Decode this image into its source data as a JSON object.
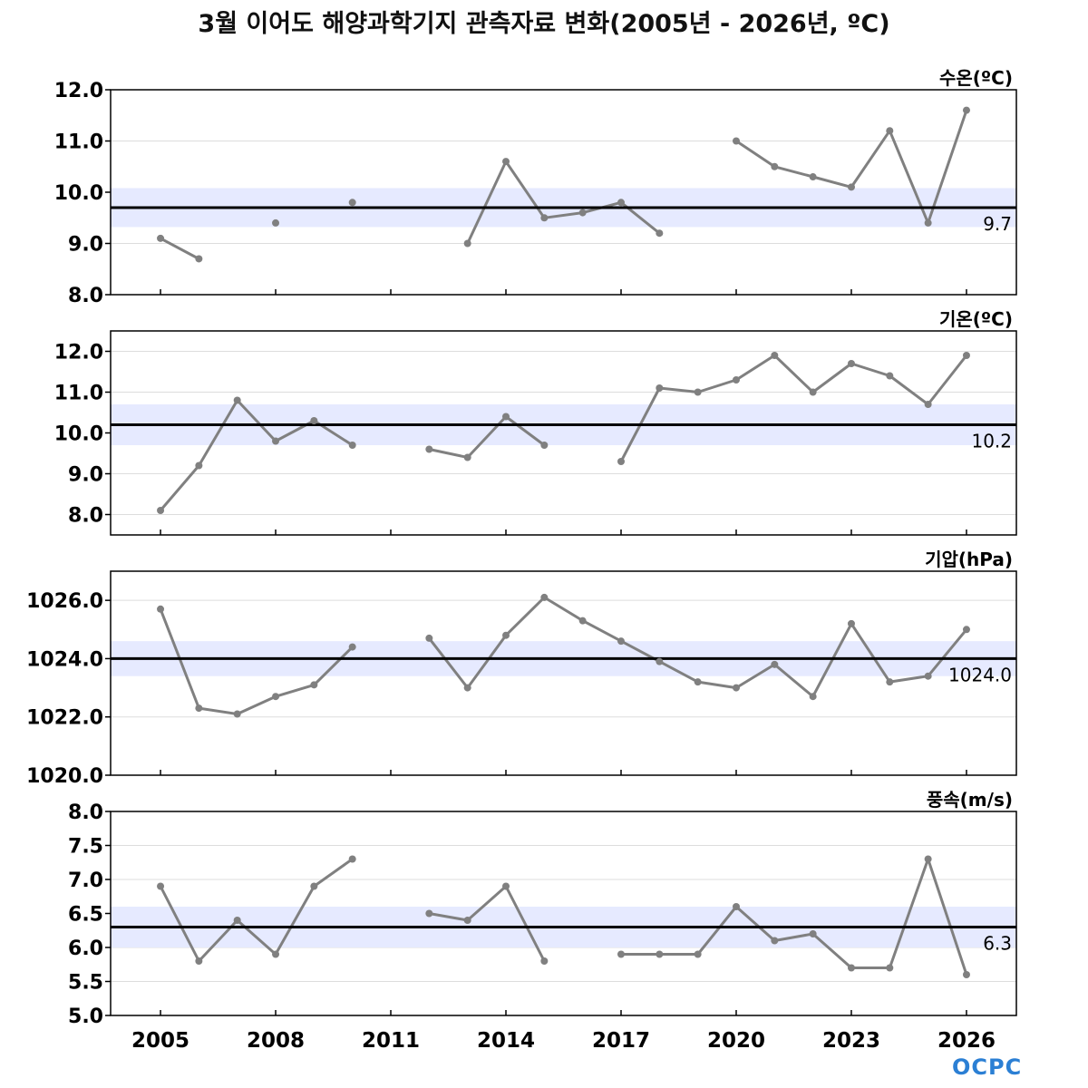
{
  "title": "3월 이어도 해양과학기지 관측자료 변화(2005년 - 2026년, ºC)",
  "logo": "OCPC",
  "colors": {
    "line": "#808080",
    "mean": "#000000",
    "band": "#e6eaff",
    "grid": "#dddddd"
  },
  "x_axis": {
    "min": 2003.7,
    "max": 2027.3,
    "ticks": [
      2005,
      2008,
      2011,
      2014,
      2017,
      2020,
      2023,
      2026
    ]
  },
  "chart_data": [
    {
      "type": "line",
      "label": "수온(ºC)",
      "ylim": [
        8.0,
        12.0
      ],
      "yticks": [
        8.0,
        9.0,
        10.0,
        11.0,
        12.0
      ],
      "ytick_labels": [
        "8.0",
        "9.0",
        "10.0",
        "11.0",
        "12.0"
      ],
      "mean": 9.7,
      "mean_label": "9.7",
      "band": [
        9.32,
        10.08
      ],
      "x": [
        2005,
        2006,
        2007,
        2008,
        2009,
        2010,
        2011,
        2012,
        2013,
        2014,
        2015,
        2016,
        2017,
        2018,
        2019,
        2020,
        2021,
        2022,
        2023,
        2024,
        2025,
        2026
      ],
      "values": [
        9.1,
        8.7,
        null,
        9.4,
        null,
        9.8,
        null,
        null,
        9.0,
        10.6,
        9.5,
        9.6,
        9.8,
        9.2,
        null,
        11.0,
        10.5,
        10.3,
        10.1,
        11.2,
        9.4,
        11.6
      ]
    },
    {
      "type": "line",
      "label": "기온(ºC)",
      "ylim": [
        7.5,
        12.5
      ],
      "yticks": [
        8.0,
        9.0,
        10.0,
        11.0,
        12.0
      ],
      "ytick_labels": [
        "8.0",
        "9.0",
        "10.0",
        "11.0",
        "12.0"
      ],
      "mean": 10.2,
      "mean_label": "10.2",
      "band": [
        9.7,
        10.7
      ],
      "x": [
        2005,
        2006,
        2007,
        2008,
        2009,
        2010,
        2011,
        2012,
        2013,
        2014,
        2015,
        2016,
        2017,
        2018,
        2019,
        2020,
        2021,
        2022,
        2023,
        2024,
        2025,
        2026
      ],
      "values": [
        8.1,
        9.2,
        10.8,
        9.8,
        10.3,
        9.7,
        null,
        9.6,
        9.4,
        10.4,
        9.7,
        null,
        9.3,
        11.1,
        11.0,
        11.3,
        11.9,
        11.0,
        11.7,
        11.4,
        10.7,
        11.9
      ]
    },
    {
      "type": "line",
      "label": "기압(hPa)",
      "ylim": [
        1020.0,
        1027.0
      ],
      "yticks": [
        1020.0,
        1022.0,
        1024.0,
        1026.0
      ],
      "ytick_labels": [
        "1020.0",
        "1022.0",
        "1024.0",
        "1026.0"
      ],
      "mean": 1024.0,
      "mean_label": "1024.0",
      "band": [
        1023.4,
        1024.6
      ],
      "x": [
        2005,
        2006,
        2007,
        2008,
        2009,
        2010,
        2011,
        2012,
        2013,
        2014,
        2015,
        2016,
        2017,
        2018,
        2019,
        2020,
        2021,
        2022,
        2023,
        2024,
        2025,
        2026
      ],
      "values": [
        1025.7,
        1022.3,
        1022.1,
        1022.7,
        1023.1,
        1024.4,
        null,
        1024.7,
        1023.0,
        1024.8,
        1026.1,
        1025.3,
        1024.6,
        1023.9,
        1023.2,
        1023.0,
        1023.8,
        1022.7,
        1025.2,
        1023.2,
        1023.4,
        1025.0
      ]
    },
    {
      "type": "line",
      "label": "풍속(m/s)",
      "ylim": [
        5.0,
        8.0
      ],
      "yticks": [
        5.0,
        5.5,
        6.0,
        6.5,
        7.0,
        7.5,
        8.0
      ],
      "ytick_labels": [
        "5.0",
        "5.5",
        "6.0",
        "6.5",
        "7.0",
        "7.5",
        "8.0"
      ],
      "mean": 6.3,
      "mean_label": "6.3",
      "band": [
        6.0,
        6.6
      ],
      "x": [
        2005,
        2006,
        2007,
        2008,
        2009,
        2010,
        2011,
        2012,
        2013,
        2014,
        2015,
        2016,
        2017,
        2018,
        2019,
        2020,
        2021,
        2022,
        2023,
        2024,
        2025,
        2026
      ],
      "values": [
        6.9,
        5.8,
        6.4,
        5.9,
        6.9,
        7.3,
        null,
        6.5,
        6.4,
        6.9,
        5.8,
        null,
        5.9,
        5.9,
        5.9,
        6.6,
        6.1,
        6.2,
        5.7,
        5.7,
        7.3,
        5.6
      ]
    }
  ]
}
